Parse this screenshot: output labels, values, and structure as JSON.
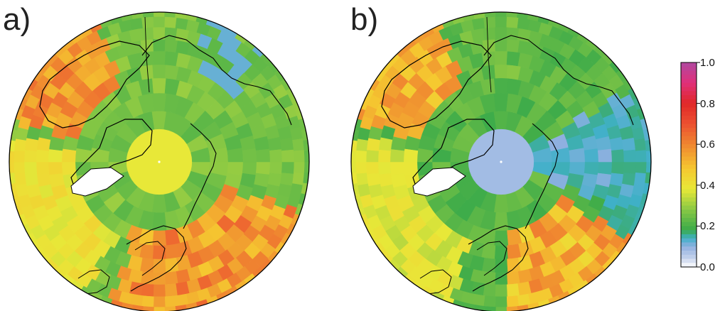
{
  "panels": [
    {
      "label": "a)"
    },
    {
      "label": "b)"
    }
  ],
  "colorbar": {
    "ticks": [
      "1.0",
      "0.8",
      "0.6",
      "0.4",
      "0.2",
      "0.0"
    ],
    "tick_values": [
      1.0,
      0.8,
      0.6,
      0.4,
      0.2,
      0.0
    ],
    "range": [
      0.0,
      1.0
    ],
    "color_stops": [
      {
        "v": 0.0,
        "c": "#ffffff"
      },
      {
        "v": 0.04,
        "c": "#c8d4ec"
      },
      {
        "v": 0.1,
        "c": "#8fb0e0"
      },
      {
        "v": 0.14,
        "c": "#3fb0c8"
      },
      {
        "v": 0.18,
        "c": "#3aaa4a"
      },
      {
        "v": 0.28,
        "c": "#88c844"
      },
      {
        "v": 0.38,
        "c": "#e8e838"
      },
      {
        "v": 0.48,
        "c": "#f5c830"
      },
      {
        "v": 0.58,
        "c": "#f09030"
      },
      {
        "v": 0.7,
        "c": "#ec5030"
      },
      {
        "v": 0.8,
        "c": "#e02828"
      },
      {
        "v": 0.9,
        "c": "#e0307a"
      },
      {
        "v": 1.0,
        "c": "#b048a0"
      }
    ]
  },
  "colors": {
    "land_outline": "#000000",
    "greenland_gap": "#ffffff"
  }
}
